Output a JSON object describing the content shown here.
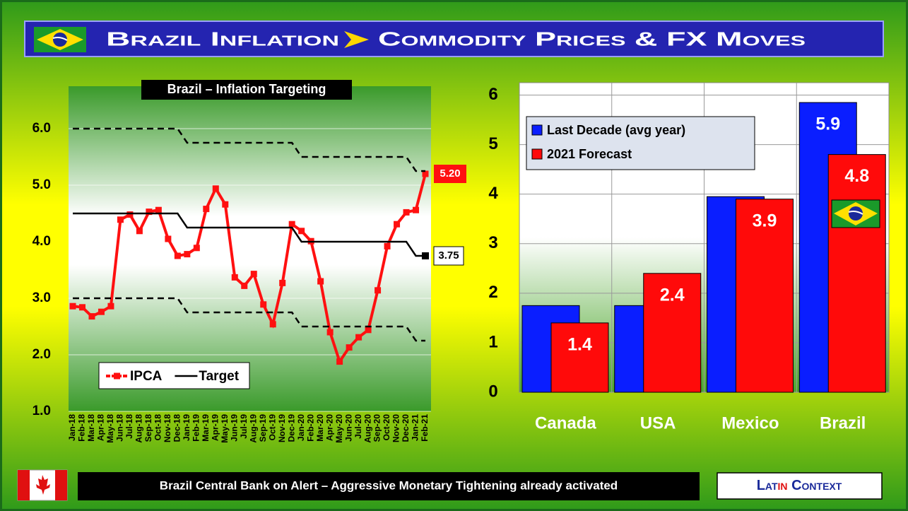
{
  "header": {
    "title_left": "Brazil Inflation",
    "title_right": "Commodity Prices & FX Moves"
  },
  "chart_data": [
    {
      "type": "line",
      "title": "Brazil – Inflation Targeting",
      "categories": [
        "Jan-18",
        "Feb-18",
        "Mar-18",
        "Apr-18",
        "May-18",
        "Jun-18",
        "Jul-18",
        "Aug-18",
        "Sep-18",
        "Oct-18",
        "Nov-18",
        "Dec-18",
        "Jan-19",
        "Feb-19",
        "Mar-19",
        "Apr-19",
        "May-19",
        "Jun-19",
        "Jul-19",
        "Aug-19",
        "Sep-19",
        "Oct-19",
        "Nov-19",
        "Dec-19",
        "Jan-20",
        "Feb-20",
        "Mar-20",
        "Apr-20",
        "May-20",
        "Jun-20",
        "Jul-20",
        "Aug-20",
        "Sep-20",
        "Oct-20",
        "Nov-20",
        "Dec-20",
        "Jan-21",
        "Feb-21"
      ],
      "series": [
        {
          "name": "IPCA",
          "color": "#ff1010",
          "markers": true,
          "values": [
            2.86,
            2.84,
            2.68,
            2.76,
            2.86,
            4.39,
            4.48,
            4.19,
            4.53,
            4.56,
            4.05,
            3.75,
            3.78,
            3.89,
            4.58,
            4.94,
            4.66,
            3.37,
            3.22,
            3.43,
            2.89,
            2.54,
            3.27,
            4.31,
            4.19,
            4.01,
            3.3,
            2.4,
            1.88,
            2.13,
            2.31,
            2.44,
            3.14,
            3.92,
            4.31,
            4.52,
            4.56,
            5.2
          ],
          "value_labels": [
            null,
            null,
            null,
            null,
            null,
            null,
            null,
            null,
            null,
            null,
            null,
            null,
            null,
            null,
            null,
            null,
            null,
            null,
            null,
            null,
            null,
            null,
            null,
            null,
            null,
            null,
            null,
            null,
            null,
            null,
            null,
            null,
            null,
            null,
            null,
            null,
            null,
            "5.20"
          ]
        },
        {
          "name": "Target",
          "color": "#000000",
          "end_marker": true,
          "values": [
            4.5,
            4.5,
            4.5,
            4.5,
            4.5,
            4.5,
            4.5,
            4.5,
            4.5,
            4.5,
            4.5,
            4.5,
            4.25,
            4.25,
            4.25,
            4.25,
            4.25,
            4.25,
            4.25,
            4.25,
            4.25,
            4.25,
            4.25,
            4.25,
            4.0,
            4.0,
            4.0,
            4.0,
            4.0,
            4.0,
            4.0,
            4.0,
            4.0,
            4.0,
            4.0,
            4.0,
            3.75,
            3.75
          ],
          "value_labels": [
            null,
            null,
            null,
            null,
            null,
            null,
            null,
            null,
            null,
            null,
            null,
            null,
            null,
            null,
            null,
            null,
            null,
            null,
            null,
            null,
            null,
            null,
            null,
            null,
            null,
            null,
            null,
            null,
            null,
            null,
            null,
            null,
            null,
            null,
            null,
            null,
            null,
            "3.75"
          ]
        },
        {
          "color": "#000000",
          "dashed": true,
          "values": [
            6.0,
            6.0,
            6.0,
            6.0,
            6.0,
            6.0,
            6.0,
            6.0,
            6.0,
            6.0,
            6.0,
            6.0,
            5.75,
            5.75,
            5.75,
            5.75,
            5.75,
            5.75,
            5.75,
            5.75,
            5.75,
            5.75,
            5.75,
            5.75,
            5.5,
            5.5,
            5.5,
            5.5,
            5.5,
            5.5,
            5.5,
            5.5,
            5.5,
            5.5,
            5.5,
            5.5,
            5.25,
            5.25
          ]
        },
        {
          "color": "#000000",
          "dashed": true,
          "values": [
            3.0,
            3.0,
            3.0,
            3.0,
            3.0,
            3.0,
            3.0,
            3.0,
            3.0,
            3.0,
            3.0,
            3.0,
            2.75,
            2.75,
            2.75,
            2.75,
            2.75,
            2.75,
            2.75,
            2.75,
            2.75,
            2.75,
            2.75,
            2.75,
            2.5,
            2.5,
            2.5,
            2.5,
            2.5,
            2.5,
            2.5,
            2.5,
            2.5,
            2.5,
            2.5,
            2.5,
            2.25,
            2.25
          ]
        }
      ],
      "ylim": [
        1,
        6.75
      ],
      "yticks": [
        {
          "value": 1,
          "label": "1.0"
        },
        {
          "value": 2,
          "label": "2.0"
        },
        {
          "value": 3,
          "label": "3.0"
        },
        {
          "value": 4,
          "label": "4.0"
        },
        {
          "value": 5,
          "label": "5.0"
        },
        {
          "value": 6,
          "label": "6.0"
        }
      ],
      "grid": true,
      "legend": "bottom-left"
    },
    {
      "type": "bar",
      "categories": [
        "Canada",
        "USA",
        "Mexico",
        "Brazil"
      ],
      "series": [
        {
          "name": "Last Decade (avg year)",
          "color": "#0a1eff",
          "values": [
            1.75,
            1.75,
            3.95,
            5.85
          ],
          "value_labels": [
            null,
            null,
            null,
            "5.9"
          ]
        },
        {
          "name": "2021 Forecast",
          "color": "#ff0a0a",
          "values": [
            1.4,
            2.4,
            3.9,
            4.8
          ]
        }
      ],
      "ylim": [
        0,
        6.25
      ],
      "yticks": [
        0,
        1,
        2,
        3,
        4,
        5,
        6
      ],
      "grid": true,
      "legend": "top-left"
    }
  ],
  "footer": {
    "note": "Brazil Central Bank on Alert – Aggressive Monetary Tightening already activated",
    "brand": [
      "Lat",
      "in",
      " Context"
    ]
  }
}
